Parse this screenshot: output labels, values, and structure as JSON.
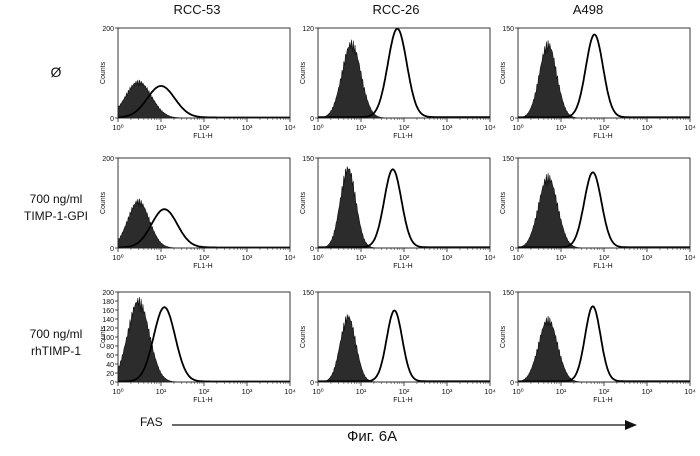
{
  "figure_label": "Фиг. 6A",
  "x_axis_marker": "FAS",
  "columns": [
    "RCC-53",
    "RCC-26",
    "A498"
  ],
  "rows": [
    {
      "lines": [
        "Ø"
      ]
    },
    {
      "lines": [
        "700 ng/ml",
        "TIMP-1-GPI"
      ]
    },
    {
      "lines": [
        "700 ng/ml",
        "rhTIMP-1"
      ]
    }
  ],
  "chart_data": {
    "type": "area",
    "xlabel": "FL1-H",
    "ylabel": "Counts",
    "x_scale": "log",
    "xlim": [
      1,
      10000
    ],
    "x_tick_labels": [
      "10⁰",
      "10¹",
      "10²",
      "10³",
      "10⁴"
    ],
    "legend": "none",
    "panels": [
      {
        "row": 0,
        "column": "RCC-53",
        "ylim": [
          0,
          200
        ],
        "y_ticks": [
          "0",
          "200"
        ],
        "filled_peak_x": 3,
        "filled_peak_y": 85,
        "open_peak_x": 10,
        "open_peak_y": 70,
        "filled_width": 0.3,
        "open_width": 0.32
      },
      {
        "row": 0,
        "column": "RCC-26",
        "ylim": [
          0,
          120
        ],
        "y_ticks": [
          "0",
          "120"
        ],
        "filled_peak_x": 6,
        "filled_peak_y": 105,
        "open_peak_x": 70,
        "open_peak_y": 118,
        "filled_width": 0.22,
        "open_width": 0.22
      },
      {
        "row": 0,
        "column": "A498",
        "ylim": [
          0,
          150
        ],
        "y_ticks": [
          "0",
          "150"
        ],
        "filled_peak_x": 5,
        "filled_peak_y": 130,
        "open_peak_x": 60,
        "open_peak_y": 138,
        "filled_width": 0.2,
        "open_width": 0.2
      },
      {
        "row": 1,
        "column": "RCC-53",
        "ylim": [
          0,
          200
        ],
        "y_ticks": [
          "0",
          "200"
        ],
        "filled_peak_x": 3,
        "filled_peak_y": 110,
        "open_peak_x": 12,
        "open_peak_y": 85,
        "filled_width": 0.25,
        "open_width": 0.3
      },
      {
        "row": 1,
        "column": "RCC-26",
        "ylim": [
          0,
          150
        ],
        "y_ticks": [
          "0",
          "150"
        ],
        "filled_peak_x": 5,
        "filled_peak_y": 140,
        "open_peak_x": 55,
        "open_peak_y": 130,
        "filled_width": 0.18,
        "open_width": 0.2
      },
      {
        "row": 1,
        "column": "A498",
        "ylim": [
          0,
          150
        ],
        "y_ticks": [
          "0",
          "150"
        ],
        "filled_peak_x": 5,
        "filled_peak_y": 125,
        "open_peak_x": 55,
        "open_peak_y": 125,
        "filled_width": 0.22,
        "open_width": 0.2
      },
      {
        "row": 2,
        "column": "RCC-53",
        "ylim": [
          0,
          200
        ],
        "y_ticks": [
          "0",
          "20",
          "40",
          "60",
          "80",
          "100",
          "120",
          "140",
          "160",
          "180",
          "200"
        ],
        "filled_peak_x": 3,
        "filled_peak_y": 190,
        "open_peak_x": 12,
        "open_peak_y": 165,
        "filled_width": 0.25,
        "open_width": 0.25
      },
      {
        "row": 2,
        "column": "RCC-26",
        "ylim": [
          0,
          150
        ],
        "y_ticks": [
          "0",
          "150"
        ],
        "filled_peak_x": 5,
        "filled_peak_y": 115,
        "open_peak_x": 60,
        "open_peak_y": 118,
        "filled_width": 0.18,
        "open_width": 0.18
      },
      {
        "row": 2,
        "column": "A498",
        "ylim": [
          0,
          150
        ],
        "y_ticks": [
          "0",
          "150"
        ],
        "filled_peak_x": 5,
        "filled_peak_y": 110,
        "open_peak_x": 55,
        "open_peak_y": 125,
        "filled_width": 0.22,
        "open_width": 0.18
      }
    ]
  }
}
